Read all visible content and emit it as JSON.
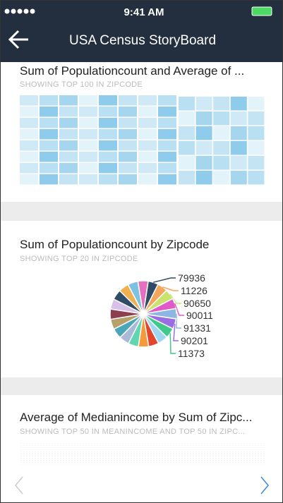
{
  "status_bar": {
    "time": "9:41 AM"
  },
  "header": {
    "title": "USA Census StoryBoard"
  },
  "cards": [
    {
      "title": "Sum of Populationcount and Average of ...",
      "subtitle": "SHOWING TOP 100 IN ZIPCODE"
    },
    {
      "title": "Sum of Populationcount by Zipcode",
      "subtitle": "SHOWING TOP 20 IN ZIPCODE",
      "chart_data": {
        "type": "pie",
        "slices": [
          {
            "label": "79936",
            "value": 5,
            "color": "#2f4b66"
          },
          {
            "label": "11226",
            "value": 5,
            "color": "#f2a65e"
          },
          {
            "label": "90650",
            "value": 5,
            "color": "#c9e36f"
          },
          {
            "label": "90011",
            "value": 5,
            "color": "#e05bc9"
          },
          {
            "label": "91331",
            "value": 5,
            "color": "#8db7e3"
          },
          {
            "label": "90201",
            "value": 5,
            "color": "#9a6ee2"
          },
          {
            "label": "11373",
            "value": 5,
            "color": "#3fca8b"
          },
          {
            "value": 5,
            "color": "#9fd6f0"
          },
          {
            "value": 5,
            "color": "#e2462c"
          },
          {
            "value": 5,
            "color": "#f59a3c"
          },
          {
            "value": 5,
            "color": "#5fd6b0"
          },
          {
            "value": 5,
            "color": "#a9b9d8"
          },
          {
            "value": 5,
            "color": "#4aa6b8"
          },
          {
            "value": 5,
            "color": "#b8a06a"
          },
          {
            "value": 5,
            "color": "#8c3f4d"
          },
          {
            "value": 5,
            "color": "#d8c0e8"
          },
          {
            "value": 5,
            "color": "#2f4b66"
          },
          {
            "value": 5,
            "color": "#f0b04f"
          },
          {
            "value": 5,
            "color": "#7dc2e0"
          },
          {
            "value": 5,
            "color": "#e670c0"
          }
        ]
      }
    },
    {
      "title": "Average of Medianincome by Sum of Zipc...",
      "subtitle": "SHOWING TOP 50 IN MEANINCOME AND TOP 50 IN ZIPC..."
    }
  ]
}
